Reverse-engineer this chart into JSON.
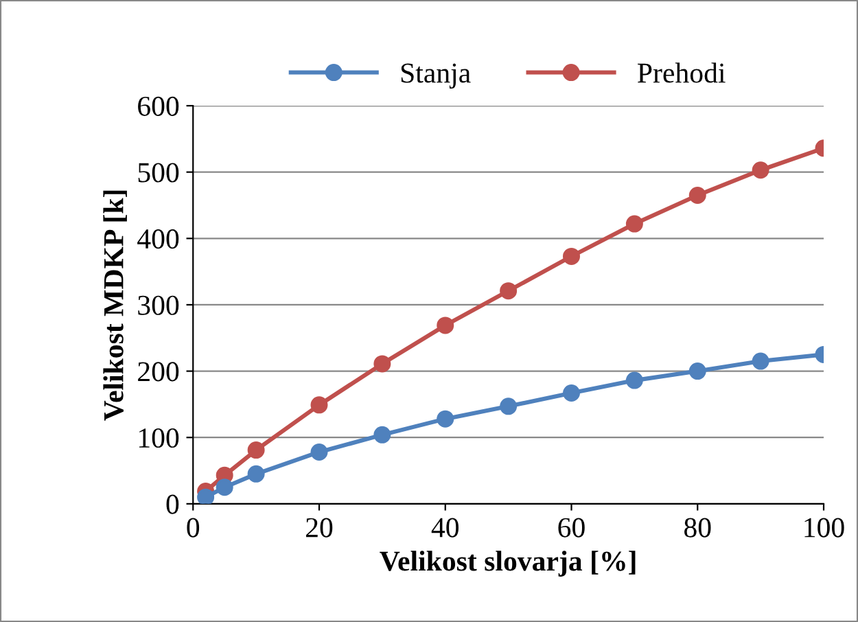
{
  "chart_data": {
    "type": "line",
    "xlabel": "Velikost slovarja [%]",
    "ylabel": "Velikost MDKP [k]",
    "x": [
      2,
      5,
      10,
      20,
      30,
      40,
      50,
      60,
      70,
      80,
      90,
      100
    ],
    "series": [
      {
        "name": "Stanja",
        "color": "#4f81bd",
        "values": [
          10,
          25,
          45,
          78,
          104,
          128,
          147,
          167,
          186,
          200,
          215,
          225
        ]
      },
      {
        "name": "Prehodi",
        "color": "#c0504d",
        "values": [
          19,
          43,
          81,
          149,
          211,
          269,
          321,
          373,
          422,
          465,
          503,
          536
        ]
      }
    ],
    "xlim": [
      0,
      100
    ],
    "xticks": [
      0,
      20,
      40,
      60,
      80,
      100
    ],
    "ylim": [
      0,
      600
    ],
    "yticks": [
      0,
      100,
      200,
      300,
      400,
      500,
      600
    ],
    "grid": "y",
    "legend": "top",
    "marker": "circle",
    "line_style": "solid"
  }
}
